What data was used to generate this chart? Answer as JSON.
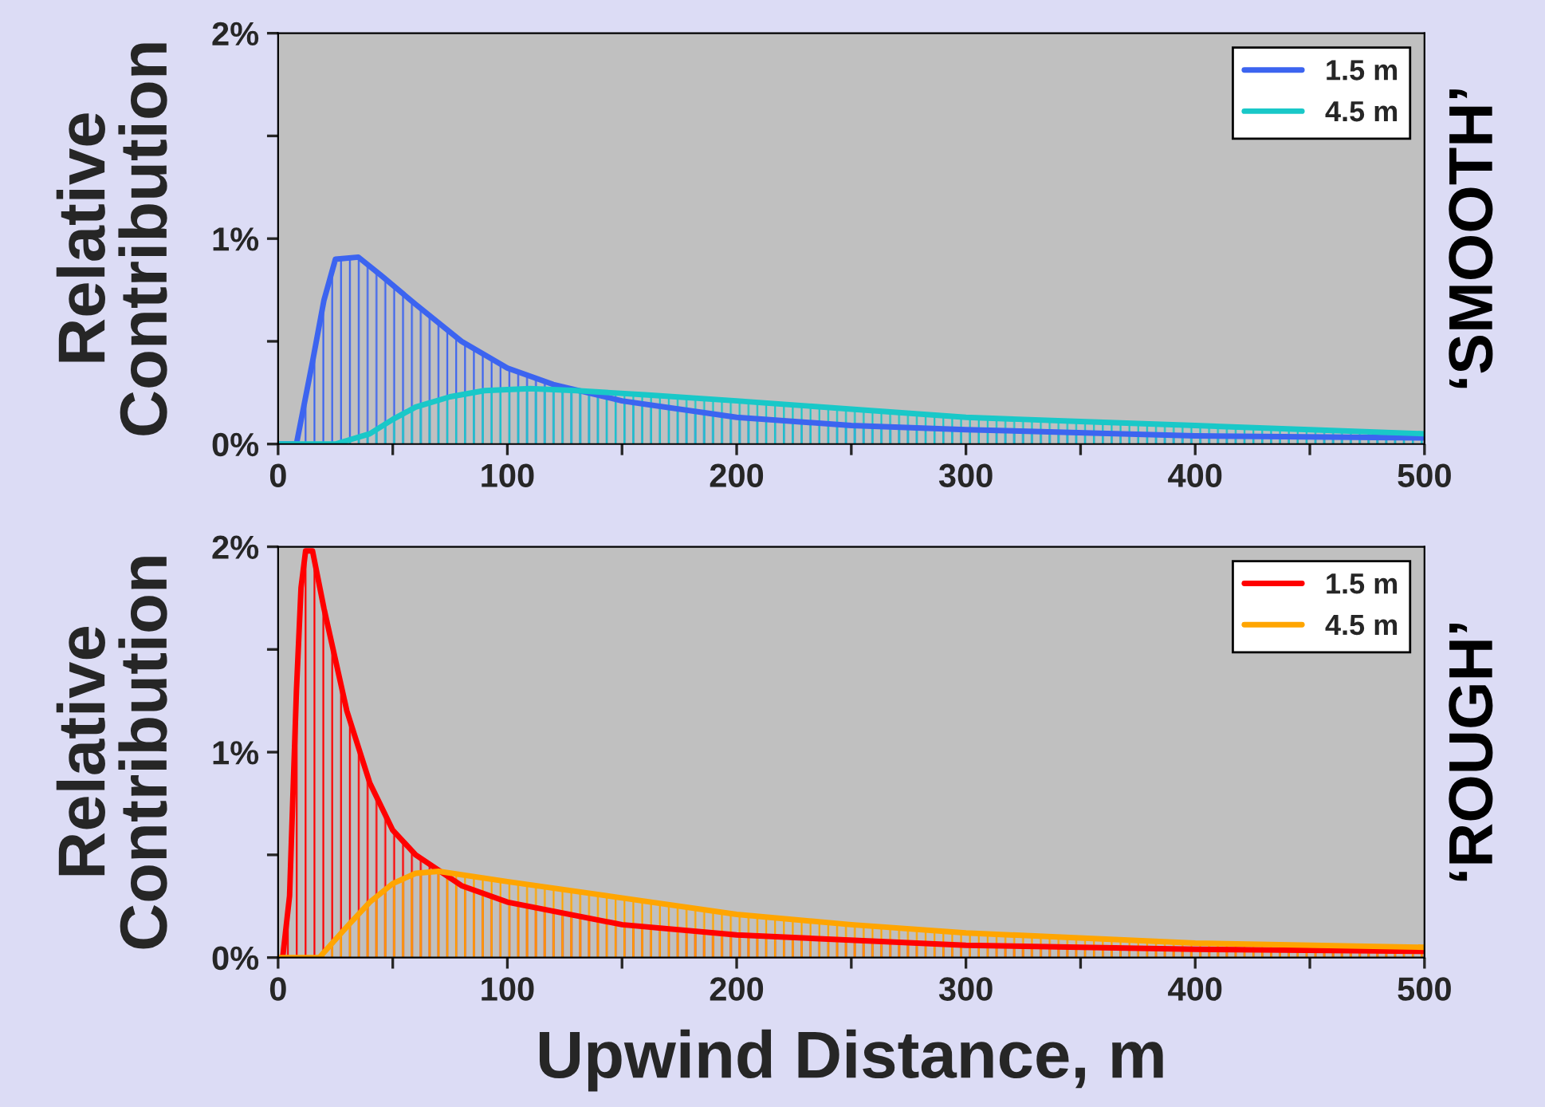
{
  "chart_data": [
    {
      "type": "area",
      "ylabel": "Relative\nContribution",
      "y2label": "‘SMOOTH’",
      "xlim": [
        0,
        500
      ],
      "xticks": [
        0,
        {
          "value": 50,
          "label": null
        },
        100,
        {
          "value": 150,
          "label": null
        },
        200,
        {
          "value": 250,
          "label": null
        },
        300,
        {
          "value": 350,
          "label": null
        },
        400,
        {
          "value": 450,
          "label": null
        },
        500
      ],
      "ylim": [
        0,
        2
      ],
      "yticks": [
        {
          "value": 0,
          "label": "0%"
        },
        {
          "value": 0.5,
          "label": null
        },
        {
          "value": 1,
          "label": "1%"
        },
        {
          "value": 1.5,
          "label": null
        },
        {
          "value": 2,
          "label": "2%"
        }
      ],
      "legend": "top right",
      "grid": false,
      "series": [
        {
          "name": "1.5 m",
          "color": "#3c64f0",
          "x": [
            0,
            8,
            15,
            20,
            25,
            35,
            45,
            60,
            80,
            100,
            120,
            150,
            200,
            250,
            300,
            400,
            500
          ],
          "values": [
            0,
            0,
            0.4,
            0.7,
            0.9,
            0.91,
            0.82,
            0.68,
            0.5,
            0.37,
            0.29,
            0.21,
            0.13,
            0.09,
            0.07,
            0.04,
            0.03
          ]
        },
        {
          "name": "4.5 m",
          "color": "#19c8c8",
          "x": [
            0,
            25,
            40,
            50,
            60,
            75,
            90,
            110,
            130,
            160,
            200,
            250,
            300,
            350,
            400,
            450,
            500
          ],
          "values": [
            0,
            0,
            0.05,
            0.12,
            0.18,
            0.23,
            0.26,
            0.27,
            0.26,
            0.24,
            0.21,
            0.17,
            0.13,
            0.11,
            0.09,
            0.07,
            0.05
          ]
        }
      ]
    },
    {
      "type": "area",
      "ylabel": "Relative\nContribution",
      "y2label": "‘ROUGH’",
      "xlabel": "Upwind Distance, m",
      "xlim": [
        0,
        500
      ],
      "xticks": [
        0,
        {
          "value": 50,
          "label": null
        },
        100,
        {
          "value": 150,
          "label": null
        },
        200,
        {
          "value": 250,
          "label": null
        },
        300,
        {
          "value": 350,
          "label": null
        },
        400,
        {
          "value": 450,
          "label": null
        },
        500
      ],
      "ylim": [
        0,
        2
      ],
      "yticks": [
        {
          "value": 0,
          "label": "0%"
        },
        {
          "value": 0.5,
          "label": null
        },
        {
          "value": 1,
          "label": "1%"
        },
        {
          "value": 1.5,
          "label": null
        },
        {
          "value": 2,
          "label": "2%"
        }
      ],
      "legend": "top right",
      "grid": false,
      "series": [
        {
          "name": "1.5 m",
          "color": "#ff0000",
          "x": [
            0,
            2,
            5,
            8,
            10,
            12,
            15,
            20,
            30,
            40,
            50,
            60,
            80,
            100,
            150,
            200,
            300,
            400,
            500
          ],
          "values": [
            0,
            0,
            0.3,
            1.3,
            1.8,
            1.98,
            1.98,
            1.7,
            1.2,
            0.85,
            0.62,
            0.5,
            0.35,
            0.27,
            0.16,
            0.11,
            0.06,
            0.04,
            0.03
          ]
        },
        {
          "name": "4.5 m",
          "color": "#ffa500",
          "x": [
            0,
            18,
            30,
            40,
            50,
            60,
            70,
            100,
            150,
            200,
            250,
            300,
            400,
            500
          ],
          "values": [
            0,
            0,
            0.15,
            0.27,
            0.36,
            0.41,
            0.42,
            0.37,
            0.29,
            0.21,
            0.16,
            0.12,
            0.07,
            0.05
          ]
        }
      ]
    }
  ]
}
